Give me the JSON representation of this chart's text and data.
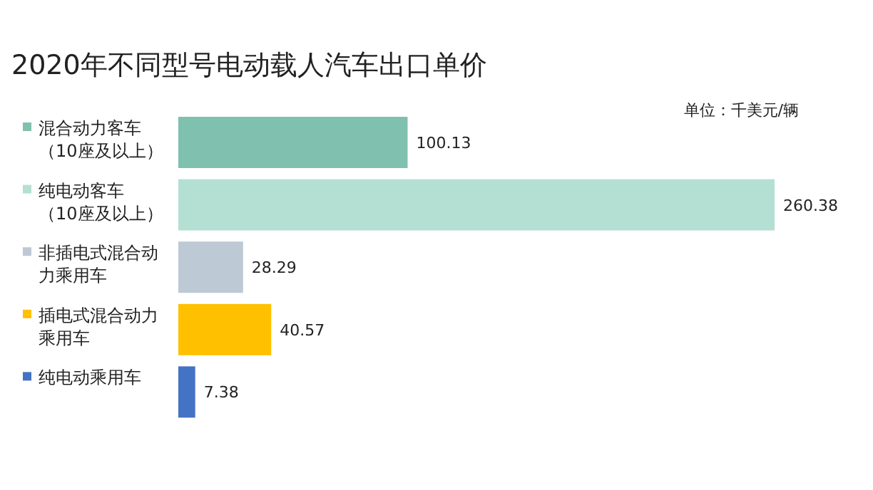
{
  "chart_data": {
    "type": "bar",
    "orientation": "horizontal",
    "title": "2020年不同型号电动载人汽车出口单价",
    "annotations": [
      "单位：千美元/辆"
    ],
    "categories": [
      "混合动力客车（10座及以上）",
      "纯电动客车（10座及以上）",
      "非插电式混合动力乘用车",
      "插电式混合动力乘用车",
      "纯电动乘用车"
    ],
    "values": [
      100.13,
      260.38,
      28.29,
      40.57,
      7.38
    ],
    "colors": [
      "#80c0ae",
      "#b3e0d3",
      "#bdc9d4",
      "#ffc000",
      "#4472c4"
    ],
    "data_labels": true,
    "grid": false
  }
}
